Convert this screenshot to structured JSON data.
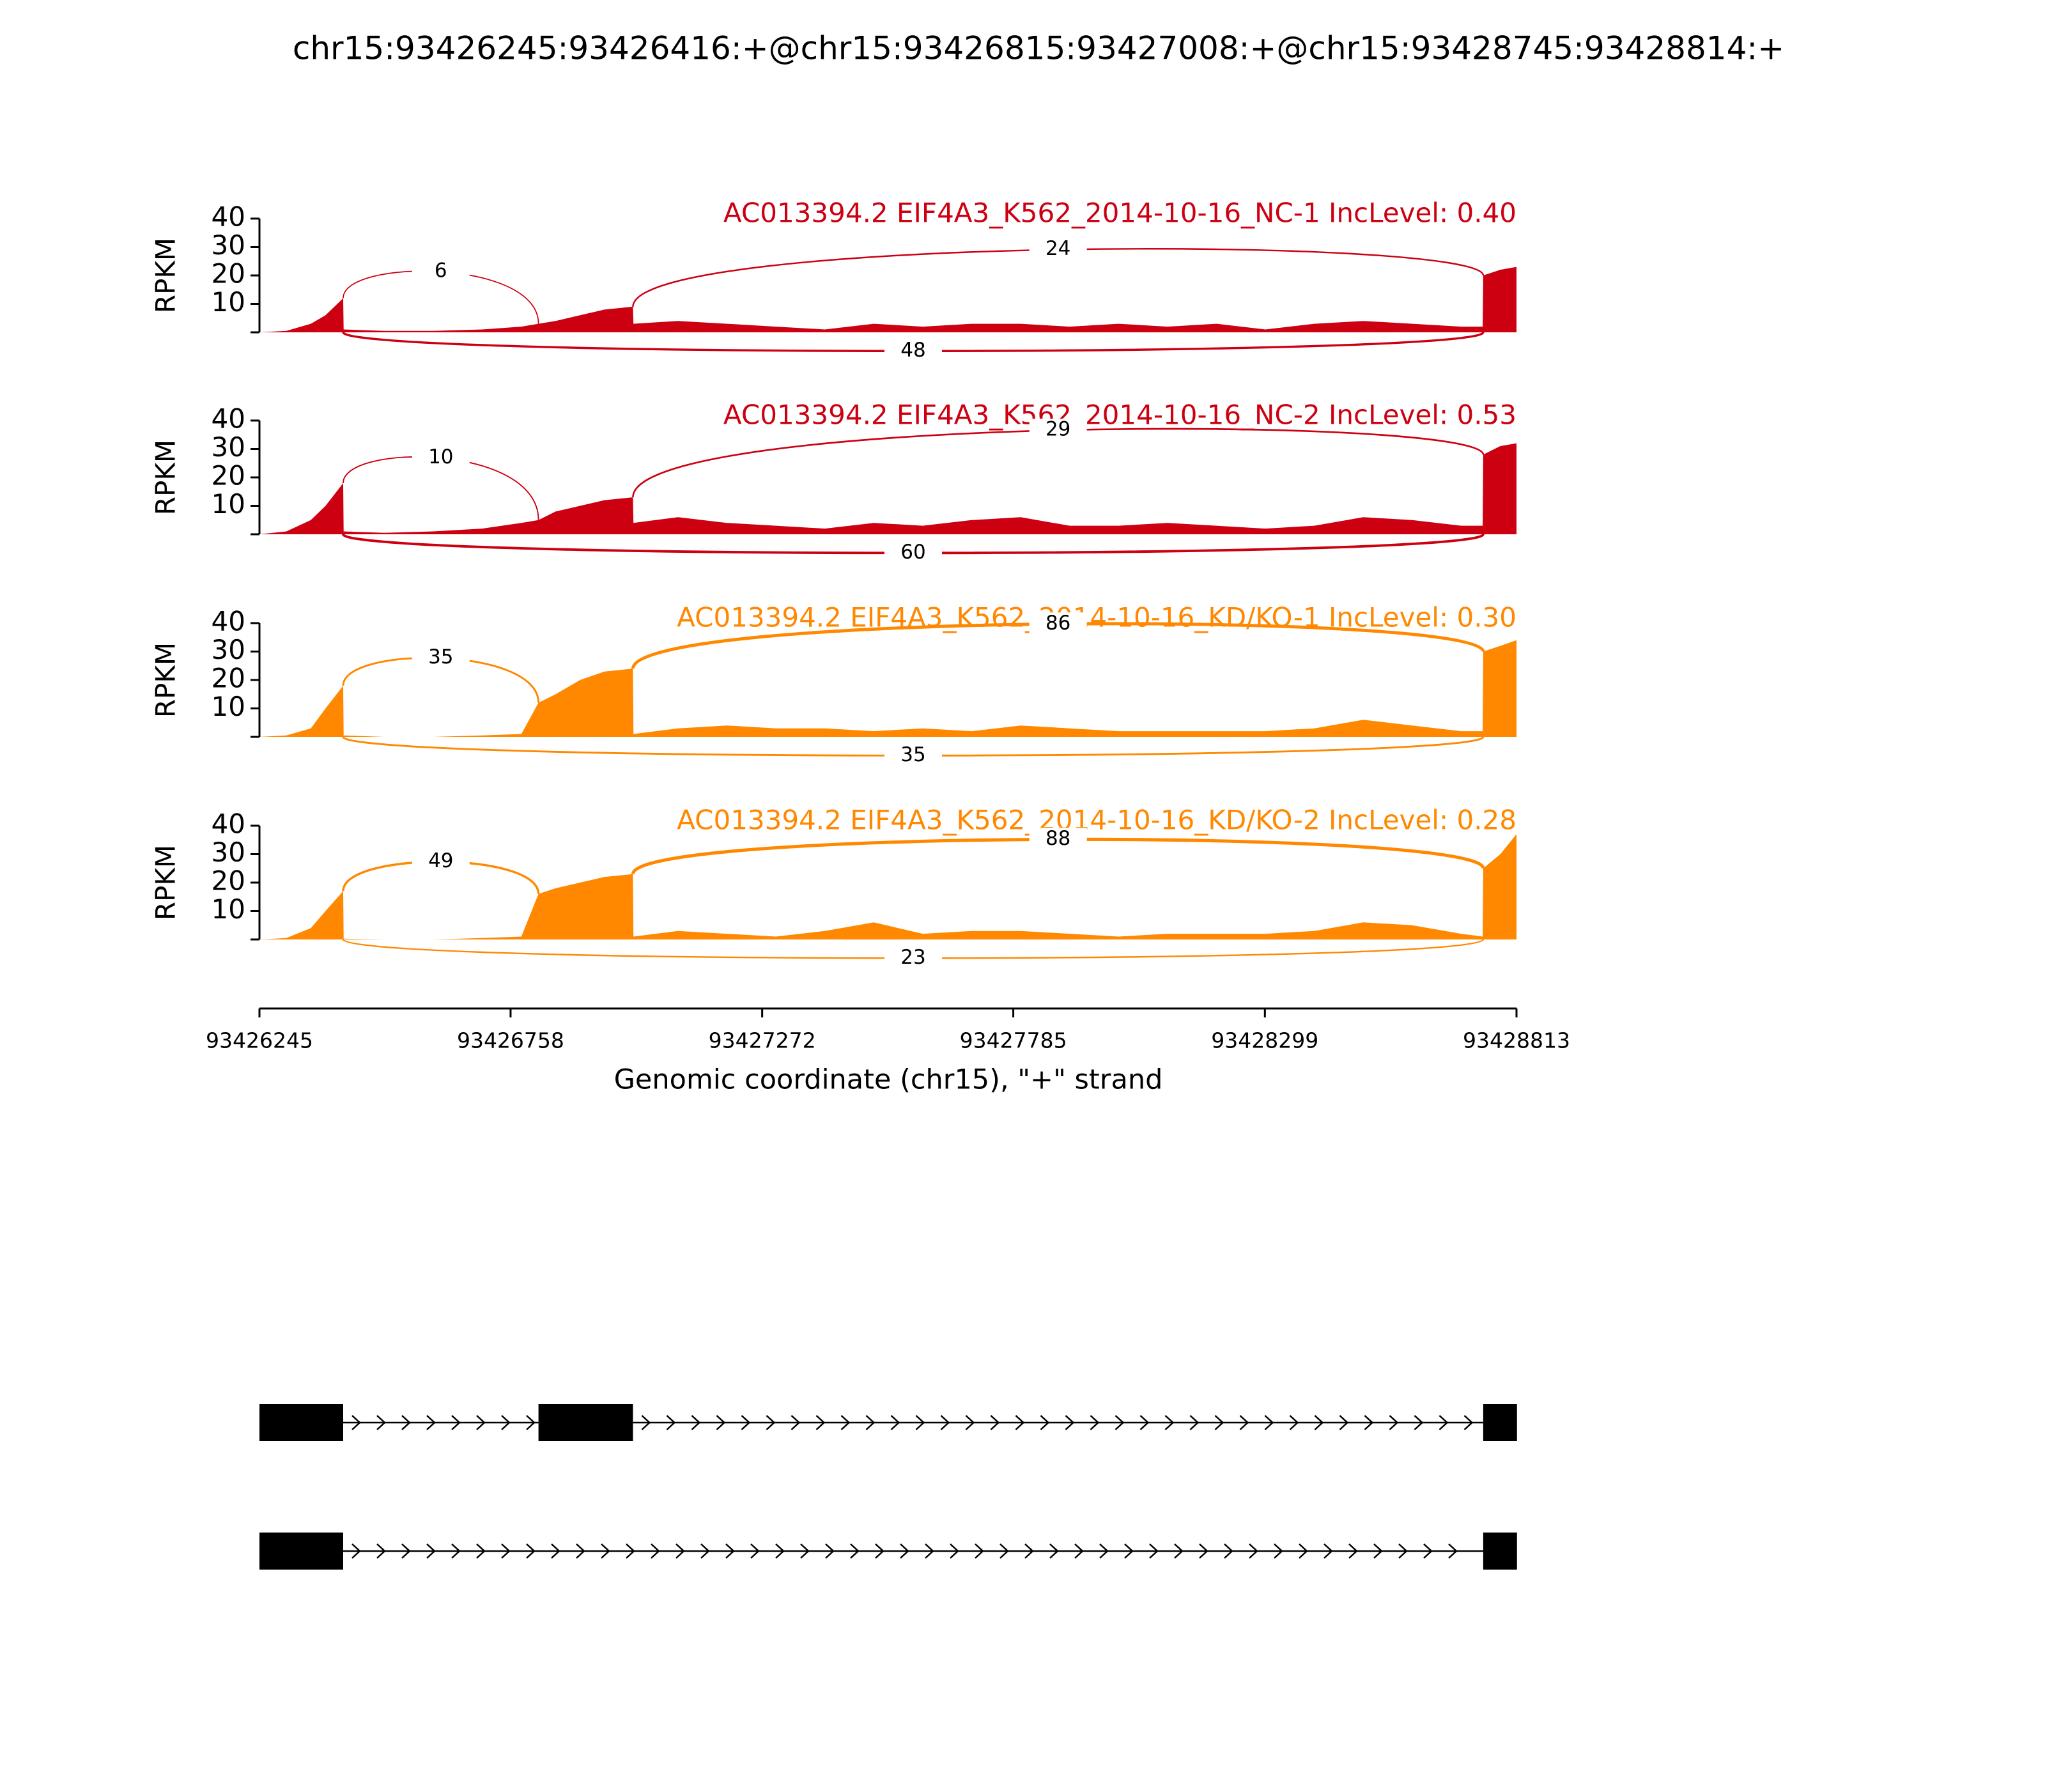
{
  "chart_data": {
    "type": "sashimi",
    "title": "chr15:93426245:93426416:+@chr15:93426815:93427008:+@chr15:93428745:93428814:+",
    "xlabel": "Genomic coordinate (chr15), \"+\" strand",
    "ylabel": "RPKM",
    "xlim": [
      93426245,
      93428813
    ],
    "xticks": [
      93426245,
      93426758,
      93427272,
      93427785,
      93428299,
      93428813
    ],
    "ylim": [
      0,
      40
    ],
    "yticks": [
      10,
      20,
      30,
      40
    ],
    "coverage_x": [
      93426245,
      93426300,
      93426350,
      93426380,
      93426416,
      93426417,
      93426500,
      93426600,
      93426700,
      93426780,
      93426815,
      93426850,
      93426900,
      93426950,
      93427008,
      93427009,
      93427100,
      93427200,
      93427300,
      93427400,
      93427500,
      93427600,
      93427700,
      93427800,
      93427900,
      93428000,
      93428100,
      93428200,
      93428300,
      93428400,
      93428500,
      93428600,
      93428700,
      93428744,
      93428745,
      93428780,
      93428813
    ],
    "panels": [
      {
        "label": "AC013394.2 EIF4A3_K562_2014-10-16_NC-1 IncLevel: 0.40",
        "color": "#cc0011",
        "coverage": [
          0,
          0.5,
          3,
          6,
          12,
          1,
          0.5,
          0.5,
          1,
          2,
          3,
          4,
          6,
          8,
          9,
          3,
          4,
          3,
          2,
          1,
          3,
          2,
          3,
          3,
          2,
          3,
          2,
          3,
          1,
          3,
          4,
          3,
          2,
          2,
          20,
          22,
          23
        ],
        "junctions": [
          {
            "start": 93426416,
            "end": 93426815,
            "count": 6,
            "side": "above"
          },
          {
            "start": 93427008,
            "end": 93428745,
            "count": 24,
            "side": "above"
          },
          {
            "start": 93426416,
            "end": 93428745,
            "count": 48,
            "side": "below"
          }
        ]
      },
      {
        "label": "AC013394.2 EIF4A3_K562_2014-10-16_NC-2 IncLevel: 0.53",
        "color": "#cc0011",
        "coverage": [
          0,
          1,
          5,
          10,
          18,
          1,
          0.5,
          1,
          2,
          4,
          5,
          8,
          10,
          12,
          13,
          4,
          6,
          4,
          3,
          2,
          4,
          3,
          5,
          6,
          3,
          3,
          4,
          3,
          2,
          3,
          6,
          5,
          3,
          3,
          28,
          31,
          32
        ],
        "junctions": [
          {
            "start": 93426416,
            "end": 93426815,
            "count": 10,
            "side": "above"
          },
          {
            "start": 93427008,
            "end": 93428745,
            "count": 29,
            "side": "above"
          },
          {
            "start": 93426416,
            "end": 93428745,
            "count": 60,
            "side": "below"
          }
        ]
      },
      {
        "label": "AC013394.2 EIF4A3_K562_2014-10-16_KD/KO-1 IncLevel: 0.30",
        "color": "#ff8800",
        "coverage": [
          0,
          0.5,
          3,
          10,
          18,
          0.5,
          0,
          0,
          0.5,
          1,
          12,
          15,
          20,
          23,
          24,
          1,
          3,
          4,
          3,
          3,
          2,
          3,
          2,
          4,
          3,
          2,
          2,
          2,
          2,
          3,
          6,
          4,
          2,
          2,
          30,
          32,
          34
        ],
        "junctions": [
          {
            "start": 93426416,
            "end": 93426815,
            "count": 35,
            "side": "above"
          },
          {
            "start": 93427008,
            "end": 93428745,
            "count": 86,
            "side": "above"
          },
          {
            "start": 93426416,
            "end": 93428745,
            "count": 35,
            "side": "below"
          }
        ]
      },
      {
        "label": "AC013394.2 EIF4A3_K562_2014-10-16_KD/KO-2 IncLevel: 0.28",
        "color": "#ff8800",
        "coverage": [
          0,
          0.5,
          4,
          10,
          17,
          0.3,
          0,
          0,
          0.5,
          1,
          16,
          18,
          20,
          22,
          23,
          1,
          3,
          2,
          1,
          3,
          6,
          2,
          3,
          3,
          2,
          1,
          2,
          2,
          2,
          3,
          6,
          5,
          2,
          1,
          25,
          30,
          37
        ],
        "junctions": [
          {
            "start": 93426416,
            "end": 93426815,
            "count": 49,
            "side": "above"
          },
          {
            "start": 93427008,
            "end": 93428745,
            "count": 88,
            "side": "above"
          },
          {
            "start": 93426416,
            "end": 93428745,
            "count": 23,
            "side": "below"
          }
        ]
      }
    ],
    "transcripts": [
      {
        "exons": [
          [
            93426245,
            93426416
          ],
          [
            93426815,
            93427008
          ],
          [
            93428745,
            93428814
          ]
        ]
      },
      {
        "exons": [
          [
            93426245,
            93426416
          ],
          [
            93428745,
            93428814
          ]
        ]
      }
    ]
  }
}
